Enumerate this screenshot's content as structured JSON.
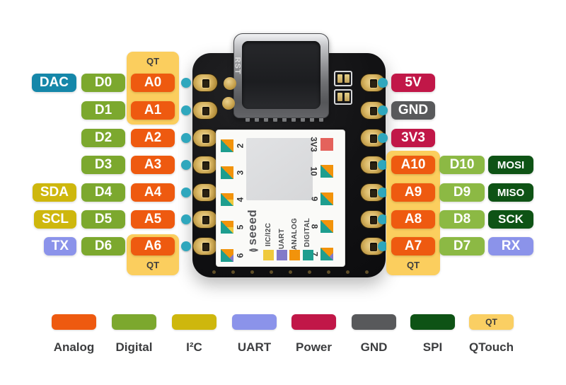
{
  "colors": {
    "dac": "#1587A9",
    "digital": "#7CA82E",
    "digital_right": "#8CB944",
    "analog": "#EE5A10",
    "i2c": "#CEB70D",
    "uart": "#8B93EA",
    "power": "#C11748",
    "gnd": "#58595B",
    "spi": "#0E5315",
    "qt_panel": "#FBCE5E",
    "pin_dot": "#2FA7BD",
    "badge_text": "#FFFFFF"
  },
  "board": {
    "rst_label": "RST",
    "sticker": {
      "brand": "seeed",
      "brand_mark": "()",
      "cap_colors": {
        "i2c": "#EFC93D",
        "uart": "#837AC9",
        "analog": "#F2930B",
        "digital": "#1E9E8F"
      },
      "legend": [
        {
          "label": "IIC/I2C",
          "color": "#EFC93D"
        },
        {
          "label": "UART",
          "color": "#837AC9"
        },
        {
          "label": "ANALOG",
          "color": "#F2930B"
        },
        {
          "label": "DIGITAL",
          "color": "#1E9E8F"
        }
      ],
      "v33": {
        "label": "3V3",
        "color": "#E4625C"
      },
      "left_pins": [
        {
          "num": "2",
          "caps": [
            "digital",
            "analog"
          ]
        },
        {
          "num": "3",
          "caps": [
            "digital",
            "analog"
          ]
        },
        {
          "num": "4",
          "caps": [
            "digital",
            "analog",
            "i2c"
          ]
        },
        {
          "num": "5",
          "caps": [
            "digital",
            "analog",
            "i2c"
          ]
        },
        {
          "num": "6",
          "caps": [
            "digital",
            "analog",
            "uart"
          ]
        }
      ],
      "right_pins": [
        {
          "num": "10",
          "caps": [
            "digital",
            "analog"
          ]
        },
        {
          "num": "9",
          "caps": [
            "digital",
            "analog"
          ]
        },
        {
          "num": "8",
          "caps": [
            "digital",
            "analog"
          ]
        },
        {
          "num": "7",
          "caps": [
            "digital",
            "analog",
            "uart"
          ]
        }
      ]
    }
  },
  "pinout": {
    "left_rows": [
      [
        {
          "label": "DAC",
          "type": "dac",
          "col": 0
        },
        {
          "label": "D0",
          "type": "digital",
          "col": 1
        },
        {
          "label": "A0",
          "type": "analog",
          "col": 2
        }
      ],
      [
        {
          "label": "D1",
          "type": "digital",
          "col": 1
        },
        {
          "label": "A1",
          "type": "analog",
          "col": 2
        }
      ],
      [
        {
          "label": "D2",
          "type": "digital",
          "col": 1
        },
        {
          "label": "A2",
          "type": "analog",
          "col": 2
        }
      ],
      [
        {
          "label": "D3",
          "type": "digital",
          "col": 1
        },
        {
          "label": "A3",
          "type": "analog",
          "col": 2
        }
      ],
      [
        {
          "label": "SDA",
          "type": "i2c",
          "col": 0
        },
        {
          "label": "D4",
          "type": "digital",
          "col": 1
        },
        {
          "label": "A4",
          "type": "analog",
          "col": 2
        }
      ],
      [
        {
          "label": "SCL",
          "type": "i2c",
          "col": 0
        },
        {
          "label": "D5",
          "type": "digital",
          "col": 1
        },
        {
          "label": "A5",
          "type": "analog",
          "col": 2
        }
      ],
      [
        {
          "label": "TX",
          "type": "uart",
          "col": 0
        },
        {
          "label": "D6",
          "type": "digital",
          "col": 1
        },
        {
          "label": "A6",
          "type": "analog",
          "col": 2
        }
      ]
    ],
    "right_rows": [
      [
        {
          "label": "5V",
          "type": "power",
          "col": 0
        }
      ],
      [
        {
          "label": "GND",
          "type": "gnd",
          "col": 0
        }
      ],
      [
        {
          "label": "3V3",
          "type": "power",
          "col": 0
        }
      ],
      [
        {
          "label": "A10",
          "type": "analog",
          "col": 0
        },
        {
          "label": "D10",
          "type": "digital_right",
          "col": 1
        },
        {
          "label": "MOSI",
          "type": "spi",
          "col": 2
        }
      ],
      [
        {
          "label": "A9",
          "type": "analog",
          "col": 0
        },
        {
          "label": "D9",
          "type": "digital_right",
          "col": 1
        },
        {
          "label": "MISO",
          "type": "spi",
          "col": 2
        }
      ],
      [
        {
          "label": "A8",
          "type": "analog",
          "col": 0
        },
        {
          "label": "D8",
          "type": "digital_right",
          "col": 1
        },
        {
          "label": "SCK",
          "type": "spi",
          "col": 2
        }
      ],
      [
        {
          "label": "A7",
          "type": "analog",
          "col": 0
        },
        {
          "label": "D7",
          "type": "digital_right",
          "col": 1
        },
        {
          "label": "RX",
          "type": "uart",
          "col": 2
        }
      ]
    ]
  },
  "qtouch": {
    "label": "QT"
  },
  "legend": {
    "items": [
      {
        "label": "Analog",
        "color": "#EE5A10"
      },
      {
        "label": "Digital",
        "color": "#7CA82E"
      },
      {
        "label": "I²C",
        "color": "#CEB70D"
      },
      {
        "label": "UART",
        "color": "#8B93EA"
      },
      {
        "label": "Power",
        "color": "#C11748"
      },
      {
        "label": "GND",
        "color": "#58595B"
      },
      {
        "label": "SPI",
        "color": "#0E5315"
      },
      {
        "label": "QTouch",
        "color": "#FACF63",
        "swatch_label": "QT"
      }
    ]
  }
}
